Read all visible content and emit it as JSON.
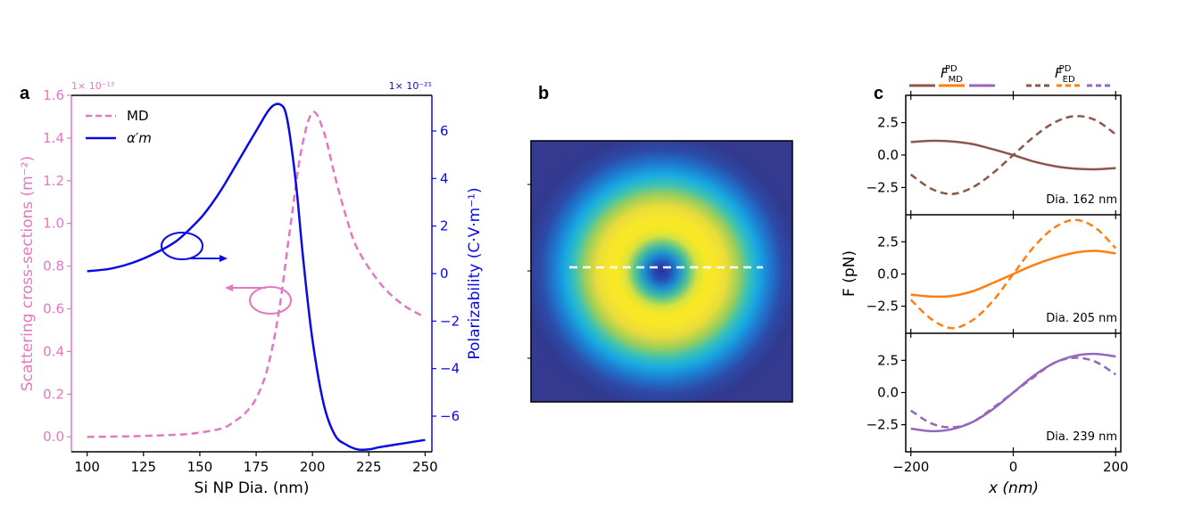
{
  "figure": {
    "panel_labels": [
      "a",
      "b",
      "c"
    ]
  },
  "chart_data": [
    {
      "type": "line",
      "panel": "a",
      "xlabel": "Si NP Dia. (nm)",
      "ylabel_left": "Scattering cross-sections (m⁻²)",
      "ylabel_right": "Polarizability (C·V·m⁻¹)",
      "left_multiplier": "1× 10⁻¹³",
      "right_multiplier": "1× 10⁻²¹",
      "xlim": [
        93,
        253
      ],
      "ylim_left": [
        -0.07,
        1.6
      ],
      "ylim_right": [
        -7.5,
        7.5
      ],
      "x_ticks": [
        100,
        125,
        150,
        175,
        200,
        225,
        250
      ],
      "x_tick_labels": [
        "100",
        "125",
        "150",
        "175",
        "200",
        "225",
        "250"
      ],
      "y_left_ticks": [
        0.0,
        0.2,
        0.4,
        0.6,
        0.8,
        1.0,
        1.2,
        1.4,
        1.6
      ],
      "y_left_tick_labels": [
        "0.0",
        "0.2",
        "0.4",
        "0.6",
        "0.8",
        "1.0",
        "1.2",
        "1.4",
        "1.6"
      ],
      "y_right_ticks": [
        -6,
        -4,
        -2,
        0,
        2,
        4,
        6
      ],
      "y_right_tick_labels": [
        "−6",
        "−4",
        "−2",
        "0",
        "2",
        "4",
        "6"
      ],
      "legend_position": "top-left",
      "colors": {
        "md": "#e377c2",
        "alpha": "#0a0ae6",
        "left_axis": "#e377c2",
        "right_axis": "#0a0ae6"
      },
      "series": [
        {
          "name": "MD",
          "axis": "left",
          "style": "dashed",
          "x": [
            100,
            120,
            140,
            150,
            160,
            165,
            170,
            175,
            180,
            185,
            190,
            195,
            200,
            205,
            210,
            215,
            220,
            230,
            240,
            250
          ],
          "y": [
            0,
            0.003,
            0.01,
            0.02,
            0.04,
            0.07,
            0.11,
            0.18,
            0.32,
            0.58,
            0.97,
            1.34,
            1.52,
            1.43,
            1.22,
            1.03,
            0.88,
            0.72,
            0.62,
            0.56
          ]
        },
        {
          "name": "α′m",
          "axis": "right",
          "style": "solid",
          "x": [
            100,
            110,
            120,
            130,
            140,
            150,
            155,
            160,
            165,
            170,
            175,
            180,
            183,
            186,
            188,
            190,
            193,
            196,
            200,
            205,
            210,
            215,
            220,
            225,
            230,
            240,
            250
          ],
          "y": [
            0.1,
            0.2,
            0.45,
            0.85,
            1.4,
            2.3,
            2.9,
            3.6,
            4.4,
            5.2,
            6.0,
            6.8,
            7.1,
            7.1,
            6.8,
            5.8,
            3.5,
            0.5,
            -2.8,
            -5.5,
            -6.8,
            -7.2,
            -7.4,
            -7.4,
            -7.3,
            -7.15,
            -7.0
          ]
        }
      ]
    },
    {
      "type": "heatmap",
      "panel": "b",
      "description_of_pattern": "donut",
      "colormap": "viridis-like",
      "center_value": 0.2,
      "ring_peak_value": 1.0,
      "outer_value": 0.0,
      "dashed_line": "horizontal"
    },
    {
      "type": "line",
      "panel": "c",
      "xlabel": "x (nm)",
      "ylabel": "F (pN)",
      "xlim": [
        -210,
        210
      ],
      "ylim": [
        -4.6,
        4.6
      ],
      "x_ticks": [
        -200,
        0,
        200
      ],
      "x_tick_labels": [
        "−200",
        "0",
        "200"
      ],
      "y_ticks": [
        -2.5,
        0,
        2.5
      ],
      "y_tick_labels": [
        "−2.5",
        "0.0",
        "2.5"
      ],
      "legend_position": "top",
      "legend": [
        {
          "label": "F",
          "sub": "MD",
          "sup": "PD",
          "style": "solid"
        },
        {
          "label": "F",
          "sub": "ED",
          "sup": "PD",
          "style": "dashed"
        }
      ],
      "subplots": [
        {
          "annotation": "Dia. 162 nm",
          "color": "#8c564b",
          "series": [
            {
              "name": "F MD PD",
              "style": "solid",
              "x": [
                -200,
                -160,
                -120,
                -80,
                -40,
                0,
                40,
                80,
                120,
                160,
                200
              ],
              "y": [
                1.0,
                1.1,
                1.05,
                0.85,
                0.45,
                0.0,
                -0.5,
                -0.85,
                -1.05,
                -1.1,
                -1.0
              ]
            },
            {
              "name": "F ED PD",
              "style": "dashed",
              "x": [
                -200,
                -160,
                -120,
                -80,
                -40,
                0,
                40,
                80,
                120,
                160,
                200
              ],
              "y": [
                -1.5,
                -2.6,
                -3.0,
                -2.5,
                -1.4,
                0.0,
                1.4,
                2.5,
                3.0,
                2.7,
                1.6
              ]
            }
          ]
        },
        {
          "annotation": "Dia. 205 nm",
          "color": "#ff7f0e",
          "series": [
            {
              "name": "F MD PD",
              "style": "solid",
              "x": [
                -200,
                -160,
                -120,
                -80,
                -40,
                0,
                40,
                80,
                120,
                160,
                200
              ],
              "y": [
                -1.6,
                -1.75,
                -1.7,
                -1.35,
                -0.7,
                0.0,
                0.7,
                1.25,
                1.65,
                1.8,
                1.6
              ]
            },
            {
              "name": "F ED PD",
              "style": "dashed",
              "x": [
                -200,
                -160,
                -120,
                -80,
                -40,
                0,
                40,
                80,
                120,
                160,
                200
              ],
              "y": [
                -2.0,
                -3.5,
                -4.2,
                -3.6,
                -2.1,
                0.0,
                2.1,
                3.6,
                4.2,
                3.6,
                2.0
              ]
            }
          ]
        },
        {
          "annotation": "Dia. 239 nm",
          "color": "#9467bd",
          "series": [
            {
              "name": "F MD PD",
              "style": "solid",
              "x": [
                -200,
                -160,
                -120,
                -80,
                -40,
                0,
                40,
                80,
                120,
                160,
                200
              ],
              "y": [
                -2.8,
                -3.0,
                -2.85,
                -2.3,
                -1.3,
                0.0,
                1.3,
                2.3,
                2.85,
                3.0,
                2.8
              ]
            },
            {
              "name": "F ED PD",
              "style": "dashed",
              "x": [
                -200,
                -160,
                -120,
                -80,
                -40,
                0,
                40,
                80,
                120,
                160,
                200
              ],
              "y": [
                -1.4,
                -2.4,
                -2.7,
                -2.3,
                -1.2,
                0.0,
                1.2,
                2.3,
                2.7,
                2.4,
                1.4
              ]
            }
          ]
        }
      ]
    }
  ]
}
